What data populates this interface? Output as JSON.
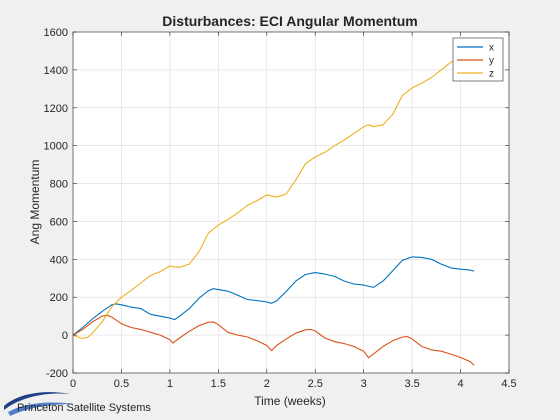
{
  "chart_data": {
    "type": "line",
    "title": "Disturbances: ECI Angular Momentum",
    "xlabel": "Time (weeks)",
    "ylabel": "Ang Momentum",
    "xlim": [
      0,
      4.5
    ],
    "ylim": [
      -200,
      1600
    ],
    "xticks": [
      0,
      0.5,
      1,
      1.5,
      2,
      2.5,
      3,
      3.5,
      4,
      4.5
    ],
    "yticks": [
      -200,
      0,
      200,
      400,
      600,
      800,
      1000,
      1200,
      1400,
      1600
    ],
    "grid": true,
    "legend_position": "top-right",
    "series": [
      {
        "name": "x",
        "color": "#0072bd",
        "points": [
          [
            0,
            0
          ],
          [
            0.1,
            40
          ],
          [
            0.2,
            85
          ],
          [
            0.3,
            125
          ],
          [
            0.4,
            160
          ],
          [
            0.45,
            165
          ],
          [
            0.5,
            160
          ],
          [
            0.6,
            148
          ],
          [
            0.7,
            140
          ],
          [
            0.8,
            110
          ],
          [
            0.9,
            100
          ],
          [
            1.0,
            90
          ],
          [
            1.05,
            82
          ],
          [
            1.1,
            100
          ],
          [
            1.2,
            140
          ],
          [
            1.3,
            195
          ],
          [
            1.4,
            235
          ],
          [
            1.45,
            245
          ],
          [
            1.5,
            240
          ],
          [
            1.6,
            232
          ],
          [
            1.7,
            210
          ],
          [
            1.8,
            188
          ],
          [
            1.9,
            182
          ],
          [
            2.0,
            175
          ],
          [
            2.05,
            168
          ],
          [
            2.1,
            180
          ],
          [
            2.2,
            230
          ],
          [
            2.3,
            285
          ],
          [
            2.4,
            320
          ],
          [
            2.5,
            330
          ],
          [
            2.6,
            322
          ],
          [
            2.7,
            310
          ],
          [
            2.8,
            285
          ],
          [
            2.9,
            270
          ],
          [
            3.0,
            264
          ],
          [
            3.1,
            252
          ],
          [
            3.2,
            285
          ],
          [
            3.3,
            340
          ],
          [
            3.4,
            395
          ],
          [
            3.5,
            413
          ],
          [
            3.6,
            410
          ],
          [
            3.7,
            400
          ],
          [
            3.8,
            375
          ],
          [
            3.9,
            355
          ],
          [
            4.0,
            348
          ],
          [
            4.1,
            343
          ],
          [
            4.14,
            338
          ]
        ]
      },
      {
        "name": "y",
        "color": "#d95319",
        "points": [
          [
            0,
            0
          ],
          [
            0.1,
            30
          ],
          [
            0.2,
            70
          ],
          [
            0.3,
            100
          ],
          [
            0.35,
            105
          ],
          [
            0.4,
            95
          ],
          [
            0.5,
            60
          ],
          [
            0.6,
            40
          ],
          [
            0.7,
            30
          ],
          [
            0.8,
            15
          ],
          [
            0.9,
            0
          ],
          [
            1.0,
            -25
          ],
          [
            1.03,
            -42
          ],
          [
            1.1,
            -15
          ],
          [
            1.2,
            20
          ],
          [
            1.3,
            50
          ],
          [
            1.4,
            68
          ],
          [
            1.45,
            70
          ],
          [
            1.5,
            55
          ],
          [
            1.6,
            15
          ],
          [
            1.7,
            0
          ],
          [
            1.8,
            -10
          ],
          [
            1.9,
            -30
          ],
          [
            2.0,
            -55
          ],
          [
            2.05,
            -82
          ],
          [
            2.1,
            -55
          ],
          [
            2.2,
            -20
          ],
          [
            2.3,
            10
          ],
          [
            2.4,
            28
          ],
          [
            2.45,
            30
          ],
          [
            2.5,
            22
          ],
          [
            2.6,
            -15
          ],
          [
            2.7,
            -35
          ],
          [
            2.8,
            -45
          ],
          [
            2.9,
            -60
          ],
          [
            3.0,
            -85
          ],
          [
            3.05,
            -120
          ],
          [
            3.1,
            -100
          ],
          [
            3.2,
            -60
          ],
          [
            3.3,
            -30
          ],
          [
            3.4,
            -10
          ],
          [
            3.45,
            -8
          ],
          [
            3.5,
            -20
          ],
          [
            3.6,
            -60
          ],
          [
            3.7,
            -78
          ],
          [
            3.8,
            -85
          ],
          [
            3.9,
            -100
          ],
          [
            4.0,
            -118
          ],
          [
            4.1,
            -140
          ],
          [
            4.14,
            -160
          ]
        ]
      },
      {
        "name": "z",
        "color": "#edb120",
        "points": [
          [
            0,
            0
          ],
          [
            0.05,
            -10
          ],
          [
            0.1,
            -18
          ],
          [
            0.15,
            -12
          ],
          [
            0.2,
            10
          ],
          [
            0.3,
            70
          ],
          [
            0.4,
            150
          ],
          [
            0.5,
            200
          ],
          [
            0.6,
            235
          ],
          [
            0.7,
            275
          ],
          [
            0.8,
            315
          ],
          [
            0.9,
            335
          ],
          [
            1.0,
            365
          ],
          [
            1.05,
            360
          ],
          [
            1.1,
            358
          ],
          [
            1.2,
            375
          ],
          [
            1.3,
            440
          ],
          [
            1.4,
            540
          ],
          [
            1.5,
            580
          ],
          [
            1.6,
            610
          ],
          [
            1.7,
            645
          ],
          [
            1.8,
            685
          ],
          [
            1.9,
            710
          ],
          [
            2.0,
            740
          ],
          [
            2.05,
            735
          ],
          [
            2.1,
            728
          ],
          [
            2.2,
            745
          ],
          [
            2.3,
            820
          ],
          [
            2.4,
            905
          ],
          [
            2.5,
            940
          ],
          [
            2.6,
            965
          ],
          [
            2.7,
            1000
          ],
          [
            2.8,
            1030
          ],
          [
            2.9,
            1065
          ],
          [
            3.0,
            1100
          ],
          [
            3.05,
            1110
          ],
          [
            3.1,
            1100
          ],
          [
            3.2,
            1110
          ],
          [
            3.3,
            1165
          ],
          [
            3.4,
            1265
          ],
          [
            3.5,
            1305
          ],
          [
            3.6,
            1330
          ],
          [
            3.7,
            1360
          ],
          [
            3.8,
            1400
          ],
          [
            3.9,
            1440
          ],
          [
            3.95,
            1450
          ]
        ]
      }
    ]
  },
  "footer": {
    "logo_text": "Princeton Satellite Systems"
  }
}
